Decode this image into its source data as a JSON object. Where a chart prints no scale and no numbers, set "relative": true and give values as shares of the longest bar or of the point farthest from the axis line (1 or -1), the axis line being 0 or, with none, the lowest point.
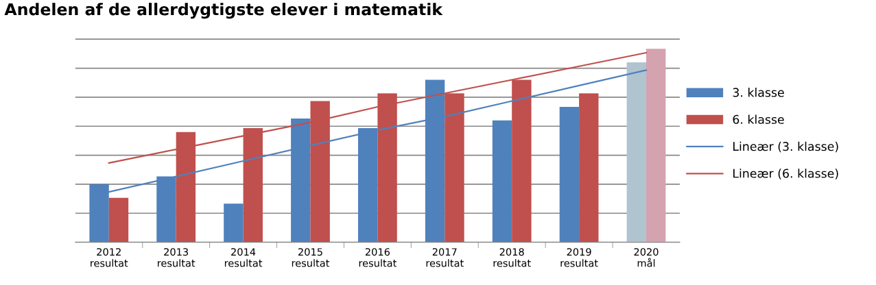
{
  "chart_data": {
    "type": "bar",
    "title": "Andelen af de allerdygtigste elever i matematik",
    "categories": [
      "2012\nresultat",
      "2013\nresultat",
      "2014\nresultat",
      "2015\nresultat",
      "2016\nresultat",
      "2017\nresultat",
      "2018\nresultat",
      "2019\nresultat",
      "2020\nmål"
    ],
    "relative": true,
    "grid": "y",
    "legend": "right",
    "series": [
      {
        "name": "3. klasse",
        "color": "#4f81bd",
        "colors": [
          "#4f81bd",
          "#4f81bd",
          "#4f81bd",
          "#4f81bd",
          "#4f81bd",
          "#4f81bd",
          "#4f81bd",
          "#4f81bd",
          "#b0c4cf"
        ],
        "values": [
          0.3,
          0.34,
          0.2,
          0.64,
          0.59,
          0.84,
          0.63,
          0.7,
          0.93
        ]
      },
      {
        "name": "6. klasse",
        "color": "#c0504d",
        "colors": [
          "#c0504d",
          "#c0504d",
          "#c0504d",
          "#c0504d",
          "#c0504d",
          "#c0504d",
          "#c0504d",
          "#c0504d",
          "#d5a2b0"
        ],
        "values": [
          0.23,
          0.57,
          0.59,
          0.73,
          0.77,
          0.77,
          0.84,
          0.77,
          1.0
        ]
      },
      {
        "name": "Lineær (3. klasse)",
        "type": "line",
        "color": "#4f81bd",
        "values": [
          0.26,
          0.34,
          0.42,
          0.5,
          0.58,
          0.65,
          0.73,
          0.81,
          0.89
        ]
      },
      {
        "name": "Lineær (6. klasse)",
        "type": "line",
        "color": "#c0504d",
        "values": [
          0.41,
          0.48,
          0.55,
          0.62,
          0.7,
          0.77,
          0.84,
          0.91,
          0.98
        ]
      }
    ]
  }
}
